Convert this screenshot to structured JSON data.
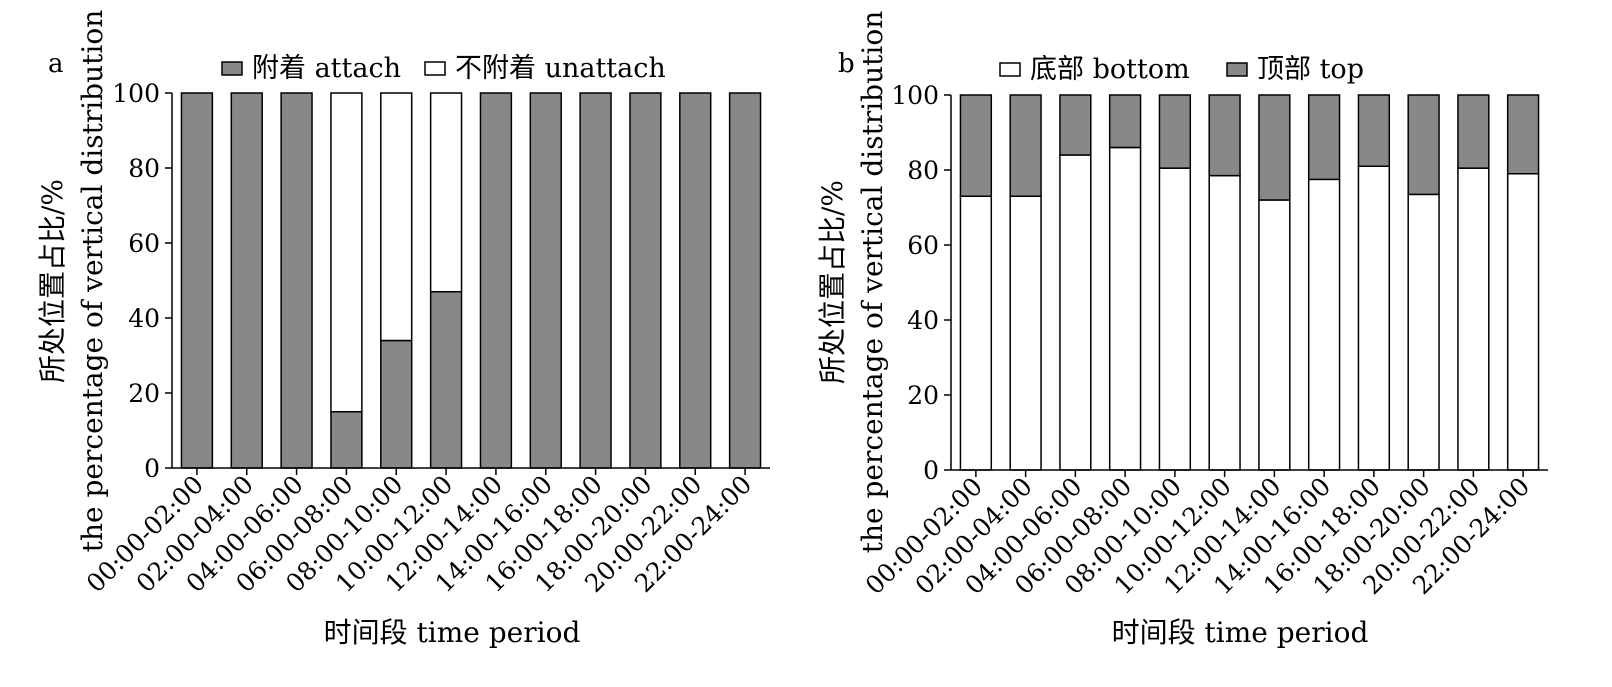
{
  "chart_data": [
    {
      "type": "bar",
      "stacked": true,
      "panel_label": "a",
      "categories": [
        "00:00-02:00",
        "02:00-04:00",
        "04:00-06:00",
        "06:00-08:00",
        "08:00-10:00",
        "10:00-12:00",
        "12:00-14:00",
        "14:00-16:00",
        "16:00-18:00",
        "18:00-20:00",
        "20:00-22:00",
        "22:00-24:00"
      ],
      "series": [
        {
          "name": "附着 attach",
          "color": "#888888",
          "values": [
            100,
            100,
            100,
            15,
            34,
            47,
            100,
            100,
            100,
            100,
            100,
            100
          ]
        },
        {
          "name": "不附着 unattach",
          "color": "#ffffff",
          "values": [
            0,
            0,
            0,
            85,
            66,
            53,
            0,
            0,
            0,
            0,
            0,
            0
          ]
        }
      ],
      "xlabel": "时间段 time period",
      "ylabel": "所处位置占比/%",
      "ylabel2": "the percentage of vertical distribution",
      "ylim": [
        0,
        100
      ],
      "yticks": [
        0,
        20,
        40,
        60,
        80,
        100
      ],
      "grid": false,
      "legend": "top"
    },
    {
      "type": "bar",
      "stacked": true,
      "panel_label": "b",
      "categories": [
        "00:00-02:00",
        "02:00-04:00",
        "04:00-06:00",
        "06:00-08:00",
        "08:00-10:00",
        "10:00-12:00",
        "12:00-14:00",
        "14:00-16:00",
        "16:00-18:00",
        "18:00-20:00",
        "20:00-22:00",
        "22:00-24:00"
      ],
      "series": [
        {
          "name": "底部 bottom",
          "color": "#ffffff",
          "values": [
            73,
            73,
            84,
            86,
            80.5,
            78.5,
            72,
            77.5,
            81,
            73.5,
            80.5,
            79
          ]
        },
        {
          "name": "顶部 top",
          "color": "#888888",
          "values": [
            27,
            27,
            16,
            14,
            19.5,
            21.5,
            28,
            22.5,
            19,
            26.5,
            19.5,
            21
          ]
        }
      ],
      "xlabel": "时间段 time period",
      "ylabel": "所处位置占比/%",
      "ylabel2": "the percentage of vertical distribution",
      "ylim": [
        0,
        100
      ],
      "yticks": [
        0,
        20,
        40,
        60,
        80,
        100
      ],
      "grid": false,
      "legend": "top"
    }
  ]
}
